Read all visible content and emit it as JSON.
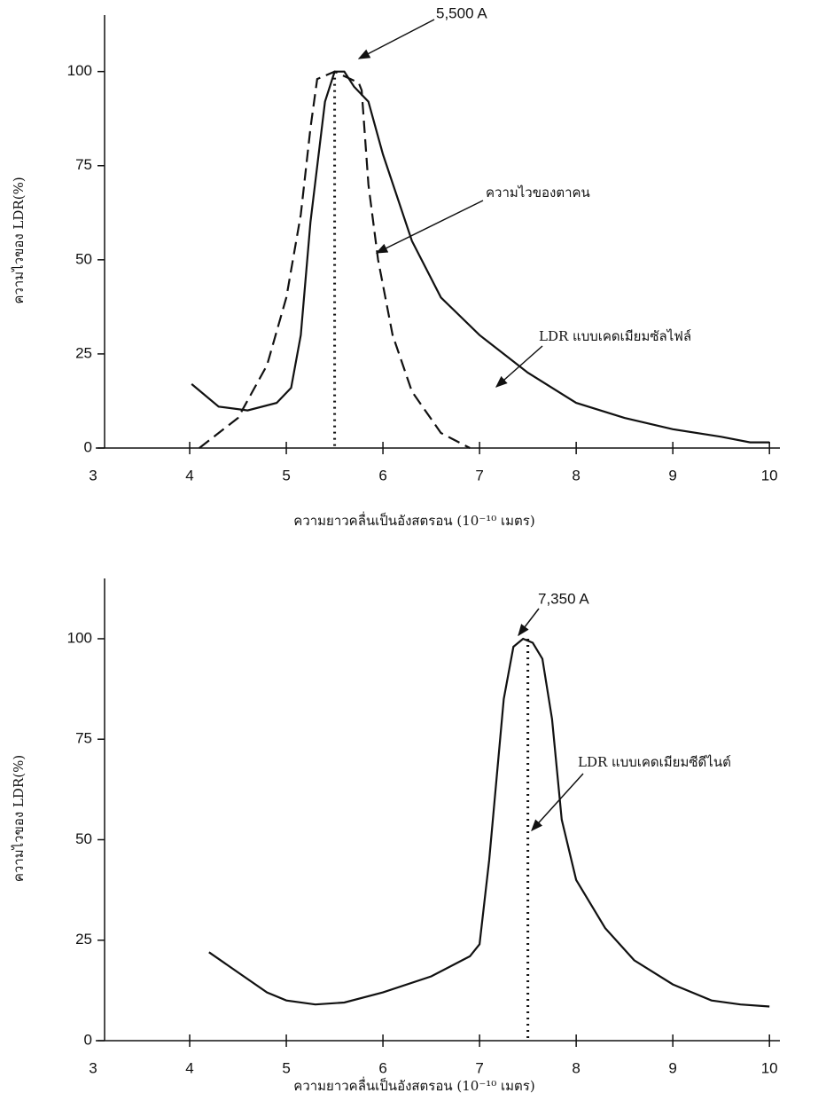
{
  "chart_data": [
    {
      "type": "line",
      "y_label": "ความไวของ LDR(%)",
      "x_label": "ความยาวคลื่นเป็นอังสตรอน (10⁻¹⁰ เมตร)",
      "xlim": [
        3,
        10.2
      ],
      "xticks": [
        3,
        4,
        5,
        6,
        7,
        8,
        9,
        10
      ],
      "ylim": [
        0,
        115
      ],
      "yticks": [
        0,
        25,
        50,
        75,
        100
      ],
      "series": [
        {
          "name": "LDR แบบเคดเมียมซัลไฟล์",
          "color": "#111111",
          "dashed": false,
          "x": [
            4.02,
            4.3,
            4.6,
            4.9,
            5.05,
            5.15,
            5.25,
            5.4,
            5.5,
            5.6,
            5.7,
            5.85,
            6.0,
            6.3,
            6.6,
            7.0,
            7.5,
            8.0,
            8.5,
            9.0,
            9.5,
            9.8,
            10.0
          ],
          "values": [
            17,
            11,
            10,
            12,
            16,
            30,
            60,
            92,
            100,
            100,
            96,
            92,
            78,
            55,
            40,
            30,
            20,
            12,
            8,
            5,
            3,
            1.5,
            1.5
          ]
        },
        {
          "name": "ความไวของตาคน",
          "color": "#111111",
          "dashed": true,
          "x": [
            4.1,
            4.5,
            4.8,
            5.0,
            5.15,
            5.25,
            5.32,
            5.5,
            5.75,
            5.78,
            5.85,
            5.95,
            6.1,
            6.3,
            6.6,
            6.9
          ],
          "values": [
            0,
            8,
            22,
            40,
            62,
            85,
            98,
            100,
            97,
            95,
            70,
            50,
            30,
            15,
            4,
            0
          ]
        }
      ],
      "annotations": [
        {
          "text": "5,500 A",
          "x": 5.5,
          "y": 100
        }
      ]
    },
    {
      "type": "line",
      "y_label": "ความไวของ LDR(%)",
      "x_label": "ความยาวคลื่นเป็นอังสตรอน (10⁻¹⁰ เมตร)",
      "xlim": [
        3,
        10.2
      ],
      "xticks": [
        3,
        4,
        5,
        6,
        7,
        8,
        9,
        10
      ],
      "ylim": [
        0,
        115
      ],
      "yticks": [
        0,
        25,
        50,
        75,
        100
      ],
      "series": [
        {
          "name": "LDR แบบเคดเมียมซีดีไนต์",
          "color": "#111111",
          "dashed": false,
          "x": [
            4.2,
            4.5,
            4.8,
            5.0,
            5.3,
            5.6,
            6.0,
            6.5,
            6.9,
            7.0,
            7.1,
            7.25,
            7.35,
            7.45,
            7.55,
            7.65,
            7.75,
            7.85,
            8.0,
            8.3,
            8.6,
            9.0,
            9.4,
            9.7,
            10.0
          ],
          "values": [
            22,
            17,
            12,
            10,
            9,
            9.5,
            12,
            16,
            21,
            24,
            45,
            85,
            98,
            100,
            99,
            95,
            80,
            55,
            40,
            28,
            20,
            14,
            10,
            9,
            8.5
          ]
        }
      ],
      "annotations": [
        {
          "text": "7,350 A",
          "x": 7.5,
          "y": 100
        }
      ]
    }
  ]
}
